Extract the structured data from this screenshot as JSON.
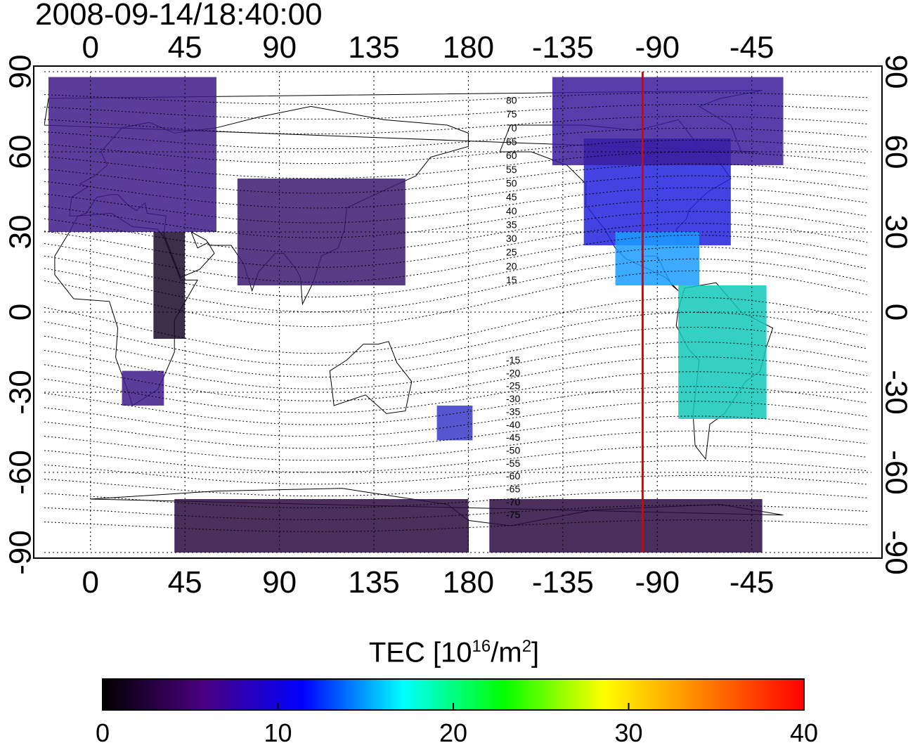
{
  "title": "2008-09-14/18:40:00",
  "map": {
    "x_tick_labels": [
      "0",
      "45",
      "90",
      "135",
      "180",
      "-135",
      "-90",
      "-45"
    ],
    "y_tick_labels": [
      "90",
      "60",
      "30",
      "0",
      "-30",
      "-60",
      "-90"
    ],
    "contour_labels": [
      "80",
      "75",
      "70",
      "65",
      "60",
      "55",
      "50",
      "45",
      "40",
      "35",
      "30",
      "25",
      "20",
      "15",
      "-15",
      "-20",
      "-25",
      "-30",
      "-35",
      "-40",
      "-45",
      "-50",
      "-55",
      "-60",
      "-65",
      "-70",
      "-75"
    ],
    "marker_line_longitude": -97,
    "marker_line_color": "#e00000",
    "grid": true
  },
  "colorbar": {
    "title_main": "TEC  [10",
    "title_sup1": "16",
    "title_mid": "/m",
    "title_sup2": "2",
    "title_end": "]",
    "tick_labels": [
      "0",
      "10",
      "20",
      "30",
      "40"
    ],
    "range": [
      0,
      40
    ],
    "colors": [
      "#000000",
      "#4a0080",
      "#0000ff",
      "#00ffff",
      "#00ff00",
      "#ffff00",
      "#ff8000",
      "#ff0000"
    ]
  }
}
